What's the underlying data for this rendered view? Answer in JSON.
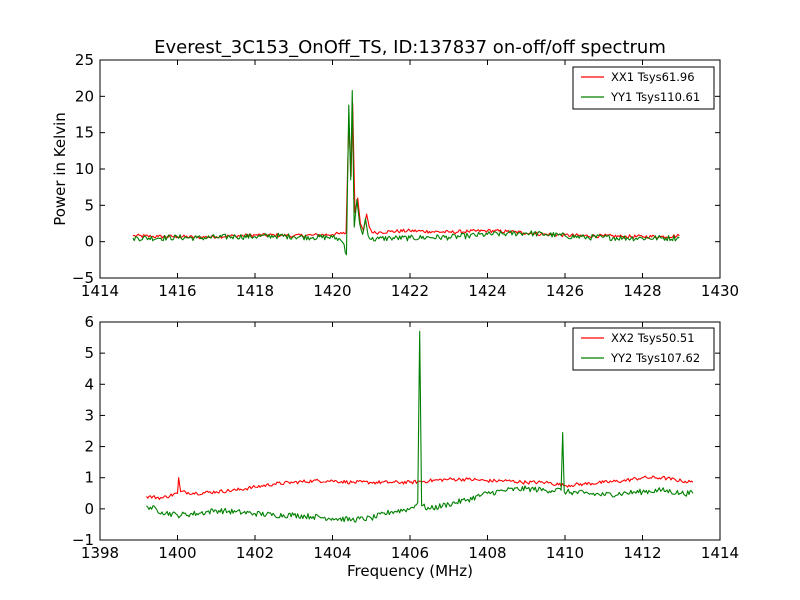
{
  "figure": {
    "title": "Everest_3C153_OnOff_TS, ID:137837 on-off/off spectrum"
  },
  "chart_data": [
    {
      "type": "line",
      "title": "Everest_3C153_OnOff_TS, ID:137837 on-off/off spectrum",
      "xlabel": "",
      "ylabel": "Power in Kelvin",
      "xlim": [
        1414,
        1430
      ],
      "ylim": [
        -5,
        25
      ],
      "xticks": [
        "1414",
        "1416",
        "1418",
        "1420",
        "1422",
        "1424",
        "1426",
        "1428",
        "1430"
      ],
      "yticks": [
        "−5",
        "0",
        "5",
        "10",
        "15",
        "20",
        "25"
      ],
      "grid": false,
      "legend": "top-right",
      "series": [
        {
          "name": "XX1 Tsys61.96",
          "color": "#ff0000",
          "x": [
            1414.85,
            1415.5,
            1416.0,
            1416.5,
            1417.0,
            1417.5,
            1418.0,
            1418.5,
            1419.0,
            1419.5,
            1420.0,
            1420.25,
            1420.35,
            1420.42,
            1420.48,
            1420.52,
            1420.58,
            1420.65,
            1420.72,
            1420.8,
            1420.88,
            1420.95,
            1421.05,
            1421.2,
            1421.5,
            1422.0,
            1422.5,
            1423.0,
            1423.5,
            1424.0,
            1424.5,
            1425.0,
            1425.5,
            1426.0,
            1426.5,
            1427.0,
            1427.5,
            1428.0,
            1428.5,
            1428.95
          ],
          "y": [
            0.8,
            0.7,
            0.7,
            0.6,
            0.7,
            0.8,
            0.9,
            0.9,
            0.8,
            0.9,
            1.0,
            1.1,
            1.2,
            16.5,
            9.0,
            19.0,
            4.0,
            6.0,
            2.5,
            1.5,
            3.8,
            2.0,
            1.2,
            1.3,
            1.4,
            1.5,
            1.4,
            1.3,
            1.4,
            1.5,
            1.4,
            1.2,
            1.0,
            0.9,
            0.8,
            0.8,
            0.7,
            0.7,
            0.7,
            0.8
          ]
        },
        {
          "name": "YY1 Tsys110.61",
          "color": "#008000",
          "x": [
            1414.85,
            1415.5,
            1416.0,
            1416.5,
            1417.0,
            1417.5,
            1418.0,
            1418.5,
            1419.0,
            1419.5,
            1420.0,
            1420.2,
            1420.3,
            1420.36,
            1420.42,
            1420.47,
            1420.51,
            1420.56,
            1420.63,
            1420.7,
            1420.78,
            1420.85,
            1420.92,
            1421.0,
            1421.2,
            1421.5,
            1422.0,
            1422.5,
            1423.0,
            1423.5,
            1424.0,
            1424.5,
            1425.0,
            1425.5,
            1426.0,
            1426.5,
            1427.0,
            1427.5,
            1428.0,
            1428.5,
            1428.95
          ],
          "y": [
            0.5,
            0.5,
            0.6,
            0.5,
            0.6,
            0.7,
            0.7,
            0.8,
            0.7,
            0.6,
            0.6,
            0.3,
            -0.4,
            -1.8,
            18.8,
            8.5,
            20.8,
            2.0,
            5.8,
            2.5,
            1.0,
            3.2,
            0.8,
            0.3,
            0.4,
            0.5,
            0.5,
            0.6,
            0.6,
            0.8,
            1.0,
            1.1,
            1.2,
            1.0,
            0.8,
            0.6,
            0.6,
            0.5,
            0.5,
            0.5,
            0.5
          ]
        }
      ]
    },
    {
      "type": "line",
      "title": "",
      "xlabel": "Frequency (MHz)",
      "ylabel": "",
      "xlim": [
        1398,
        1414
      ],
      "ylim": [
        -1,
        6
      ],
      "xticks": [
        "1398",
        "1400",
        "1402",
        "1404",
        "1406",
        "1408",
        "1410",
        "1412",
        "1414"
      ],
      "yticks": [
        "−1",
        "0",
        "1",
        "2",
        "3",
        "4",
        "5",
        "6"
      ],
      "grid": false,
      "legend": "top-right",
      "series": [
        {
          "name": "XX2 Tsys50.51",
          "color": "#ff0000",
          "x": [
            1399.2,
            1399.6,
            1400.0,
            1400.03,
            1400.08,
            1400.5,
            1401.0,
            1401.5,
            1402.0,
            1402.5,
            1403.0,
            1403.5,
            1404.0,
            1404.5,
            1405.0,
            1405.5,
            1406.0,
            1406.5,
            1407.0,
            1407.5,
            1408.0,
            1408.5,
            1409.0,
            1409.5,
            1410.0,
            1410.5,
            1411.0,
            1411.5,
            1412.0,
            1412.5,
            1413.0,
            1413.3
          ],
          "y": [
            0.4,
            0.35,
            0.5,
            1.0,
            0.55,
            0.5,
            0.55,
            0.6,
            0.7,
            0.8,
            0.85,
            0.9,
            0.9,
            0.85,
            0.85,
            0.85,
            0.85,
            0.9,
            0.95,
            0.95,
            0.9,
            0.9,
            0.85,
            0.85,
            0.75,
            0.8,
            0.85,
            0.9,
            1.0,
            1.0,
            0.9,
            0.85
          ]
        },
        {
          "name": "YY2 Tsys107.62",
          "color": "#008000",
          "x": [
            1399.2,
            1399.6,
            1400.0,
            1400.5,
            1401.0,
            1401.5,
            1402.0,
            1402.5,
            1403.0,
            1403.5,
            1404.0,
            1404.5,
            1405.0,
            1405.5,
            1406.0,
            1406.2,
            1406.25,
            1406.3,
            1406.5,
            1407.0,
            1407.5,
            1408.0,
            1408.5,
            1409.0,
            1409.5,
            1409.9,
            1409.94,
            1409.98,
            1410.5,
            1411.0,
            1411.5,
            1412.0,
            1412.5,
            1413.0,
            1413.3
          ],
          "y": [
            0.1,
            -0.1,
            -0.2,
            -0.15,
            -0.05,
            -0.1,
            -0.15,
            -0.2,
            -0.2,
            -0.25,
            -0.3,
            -0.35,
            -0.3,
            -0.1,
            0.0,
            0.2,
            5.7,
            0.1,
            0.0,
            0.15,
            0.3,
            0.5,
            0.6,
            0.65,
            0.6,
            0.6,
            2.45,
            0.55,
            0.5,
            0.45,
            0.5,
            0.55,
            0.6,
            0.5,
            0.5
          ]
        }
      ]
    }
  ]
}
